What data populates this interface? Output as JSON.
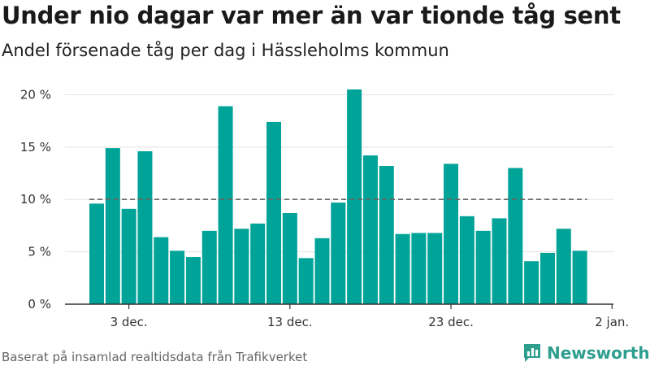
{
  "title": "Under nio dagar var mer än var tionde tåg sent",
  "subtitle": "Andel försenade tåg per dag i Hässleholms kommun",
  "footer": "Baserat på insamlad realtidsdata från Trafikverket",
  "logo": {
    "text": "Newsworthy",
    "icon": "bar-chart-logo-icon",
    "color": "#2e9e8f"
  },
  "colors": {
    "bar": "#00a398",
    "reference_line": "#666666",
    "grid": "#e3e3e3",
    "axis": "#333333"
  },
  "chart_data": {
    "type": "bar",
    "x": [
      "2023-12-01",
      "2023-12-02",
      "2023-12-03",
      "2023-12-04",
      "2023-12-05",
      "2023-12-06",
      "2023-12-07",
      "2023-12-08",
      "2023-12-09",
      "2023-12-10",
      "2023-12-11",
      "2023-12-12",
      "2023-12-13",
      "2023-12-14",
      "2023-12-15",
      "2023-12-16",
      "2023-12-17",
      "2023-12-18",
      "2023-12-19",
      "2023-12-20",
      "2023-12-21",
      "2023-12-22",
      "2023-12-23",
      "2023-12-24",
      "2023-12-25",
      "2023-12-26",
      "2023-12-27",
      "2023-12-28",
      "2023-12-29",
      "2023-12-30",
      "2023-12-31"
    ],
    "values": [
      9.6,
      14.9,
      9.1,
      14.6,
      6.4,
      5.1,
      4.5,
      7.0,
      18.9,
      7.2,
      7.7,
      17.4,
      8.7,
      4.4,
      6.3,
      9.7,
      20.5,
      14.2,
      13.2,
      6.7,
      6.8,
      6.8,
      13.4,
      8.4,
      7.0,
      8.2,
      13.0,
      4.1,
      4.9,
      7.2,
      5.1
    ],
    "ylim": [
      0,
      20.5
    ],
    "yticks": [
      0,
      5,
      10,
      15,
      20
    ],
    "ytick_labels": [
      "0 %",
      "5 %",
      "10 %",
      "15 %",
      "20 %"
    ],
    "xticks": [
      "2023-12-03",
      "2023-12-13",
      "2023-12-23",
      "2024-01-02"
    ],
    "xtick_labels": [
      "3 dec.",
      "13 dec.",
      "23 dec.",
      "2 jan."
    ],
    "reference_line": 10,
    "grid": true,
    "xlabel": "",
    "ylabel": ""
  }
}
